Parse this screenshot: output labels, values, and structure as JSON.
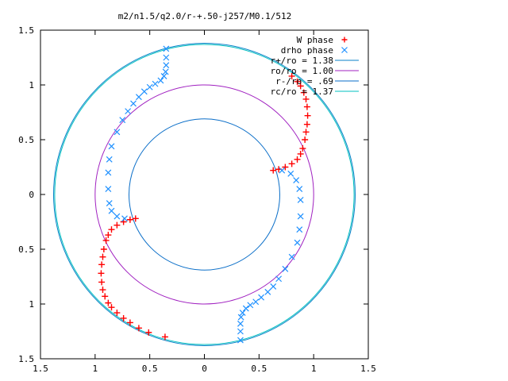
{
  "chart_data": {
    "type": "scatter",
    "title": "m2/n1.5/q2.0/r-+.50-j257/M0.1/512",
    "xlim": [
      -1.5,
      1.5
    ],
    "ylim": [
      -1.5,
      1.5
    ],
    "x_ticks": [
      -1.5,
      -1,
      -0.5,
      0,
      0.5,
      1,
      1.5
    ],
    "x_tick_labels": [
      "1.5",
      "1",
      "0.5",
      "0",
      "0.5",
      "1",
      "1.5"
    ],
    "y_ticks": [
      1.5,
      1,
      0.5,
      0,
      -0.5,
      -1,
      -1.5
    ],
    "y_tick_labels": [
      "1.5",
      "1",
      "0.5",
      "0",
      "0.5",
      "1",
      "1.5"
    ],
    "legend_position": "top-right",
    "grid": false,
    "circles": [
      {
        "name": "r+/ro = 1.38",
        "radius": 1.38,
        "color": "#0a82c8"
      },
      {
        "name": "ro/ro = 1.00",
        "radius": 1.0,
        "color": "#a020c0"
      },
      {
        "name": "r-/ro = .69",
        "radius": 0.69,
        "color": "#0a6ec8"
      },
      {
        "name": "rc/ro = 1.37",
        "radius": 1.37,
        "color": "#00c0c0"
      }
    ],
    "series": [
      {
        "name": "W phase",
        "marker": "+",
        "color": "#ff0000",
        "points": [
          [
            0.63,
            0.22
          ],
          [
            0.68,
            0.23
          ],
          [
            0.74,
            0.25
          ],
          [
            0.8,
            0.28
          ],
          [
            0.85,
            0.32
          ],
          [
            0.88,
            0.37
          ],
          [
            0.9,
            0.42
          ],
          [
            0.92,
            0.5
          ],
          [
            0.93,
            0.57
          ],
          [
            0.94,
            0.64
          ],
          [
            0.945,
            0.72
          ],
          [
            0.94,
            0.8
          ],
          [
            0.93,
            0.87
          ],
          [
            0.91,
            0.93
          ],
          [
            0.88,
            0.99
          ],
          [
            0.85,
            1.03
          ],
          [
            0.8,
            1.08
          ],
          [
            -0.63,
            -0.22
          ],
          [
            -0.68,
            -0.23
          ],
          [
            -0.74,
            -0.25
          ],
          [
            -0.8,
            -0.28
          ],
          [
            -0.85,
            -0.32
          ],
          [
            -0.88,
            -0.37
          ],
          [
            -0.9,
            -0.42
          ],
          [
            -0.92,
            -0.5
          ],
          [
            -0.93,
            -0.57
          ],
          [
            -0.94,
            -0.64
          ],
          [
            -0.945,
            -0.72
          ],
          [
            -0.94,
            -0.8
          ],
          [
            -0.93,
            -0.87
          ],
          [
            -0.91,
            -0.93
          ],
          [
            -0.88,
            -0.99
          ],
          [
            -0.85,
            -1.03
          ],
          [
            -0.8,
            -1.08
          ],
          [
            -0.74,
            -1.13
          ],
          [
            -0.68,
            -1.17
          ],
          [
            -0.6,
            -1.22
          ],
          [
            -0.51,
            -1.26
          ],
          [
            -0.36,
            -1.3
          ]
        ]
      },
      {
        "name": "drho phase",
        "marker": "x",
        "color": "#1e90ff",
        "points": [
          [
            -0.35,
            1.33
          ],
          [
            -0.35,
            1.25
          ],
          [
            -0.35,
            1.18
          ],
          [
            -0.355,
            1.12
          ],
          [
            -0.37,
            1.08
          ],
          [
            -0.4,
            1.04
          ],
          [
            -0.45,
            1.01
          ],
          [
            -0.5,
            0.98
          ],
          [
            -0.55,
            0.94
          ],
          [
            -0.6,
            0.89
          ],
          [
            -0.65,
            0.83
          ],
          [
            -0.7,
            0.76
          ],
          [
            -0.75,
            0.68
          ],
          [
            -0.8,
            0.57
          ],
          [
            -0.85,
            0.44
          ],
          [
            -0.87,
            0.32
          ],
          [
            -0.88,
            0.2
          ],
          [
            -0.88,
            0.05
          ],
          [
            -0.87,
            -0.08
          ],
          [
            -0.85,
            -0.15
          ],
          [
            -0.8,
            -0.2
          ],
          [
            -0.73,
            -0.22
          ],
          [
            0.33,
            -1.33
          ],
          [
            0.33,
            -1.25
          ],
          [
            0.33,
            -1.18
          ],
          [
            0.335,
            -1.12
          ],
          [
            0.35,
            -1.08
          ],
          [
            0.38,
            -1.04
          ],
          [
            0.42,
            -1.01
          ],
          [
            0.47,
            -0.98
          ],
          [
            0.52,
            -0.94
          ],
          [
            0.58,
            -0.89
          ],
          [
            0.63,
            -0.84
          ],
          [
            0.68,
            -0.77
          ],
          [
            0.74,
            -0.68
          ],
          [
            0.8,
            -0.57
          ],
          [
            0.85,
            -0.44
          ],
          [
            0.87,
            -0.32
          ],
          [
            0.88,
            -0.2
          ],
          [
            0.88,
            -0.05
          ],
          [
            0.87,
            0.05
          ],
          [
            0.84,
            0.13
          ],
          [
            0.79,
            0.19
          ],
          [
            0.71,
            0.22
          ]
        ]
      }
    ]
  }
}
